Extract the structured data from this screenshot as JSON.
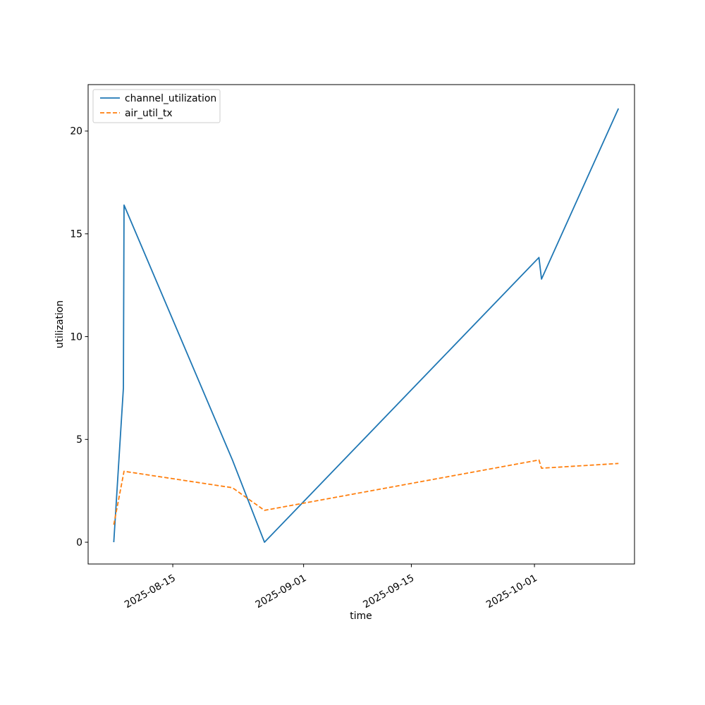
{
  "chart_data": {
    "type": "line",
    "title": "",
    "xlabel": "time",
    "ylabel": "utilization",
    "x_range": [
      "2025-08-04",
      "2025-10-14"
    ],
    "ylim": [
      -1.06,
      22.26
    ],
    "x_ticks": [
      {
        "date": "2025-08-15",
        "label": "2025-08-15"
      },
      {
        "date": "2025-09-01",
        "label": "2025-09-01"
      },
      {
        "date": "2025-09-15",
        "label": "2025-09-15"
      },
      {
        "date": "2025-10-01",
        "label": "2025-10-01"
      }
    ],
    "y_ticks": [
      0,
      5,
      10,
      15,
      20
    ],
    "grid": false,
    "legend_position": "upper-left",
    "series": [
      {
        "name": "channel_utilization",
        "color": "#1f77b4",
        "style": "solid",
        "x": [
          "2025-08-07T08:00",
          "2025-08-08T14:00",
          "2025-08-08T16:00",
          "2025-08-22T18:00",
          "2025-08-26T22:00",
          "2025-10-01T14:00",
          "2025-10-01T22:00",
          "2025-10-11T22:00"
        ],
        "y": [
          0,
          7.5,
          16.4,
          4.0,
          0,
          13.85,
          12.8,
          21.1
        ]
      },
      {
        "name": "air_util_tx",
        "color": "#ff7f0e",
        "style": "dashed",
        "x": [
          "2025-08-07T08:00",
          "2025-08-08T16:00",
          "2025-08-22T18:00",
          "2025-08-26T22:00",
          "2025-10-01T14:00",
          "2025-10-01T22:00",
          "2025-10-11T22:00"
        ],
        "y": [
          0.85,
          3.45,
          2.65,
          1.55,
          4.0,
          3.6,
          3.83
        ]
      }
    ]
  }
}
